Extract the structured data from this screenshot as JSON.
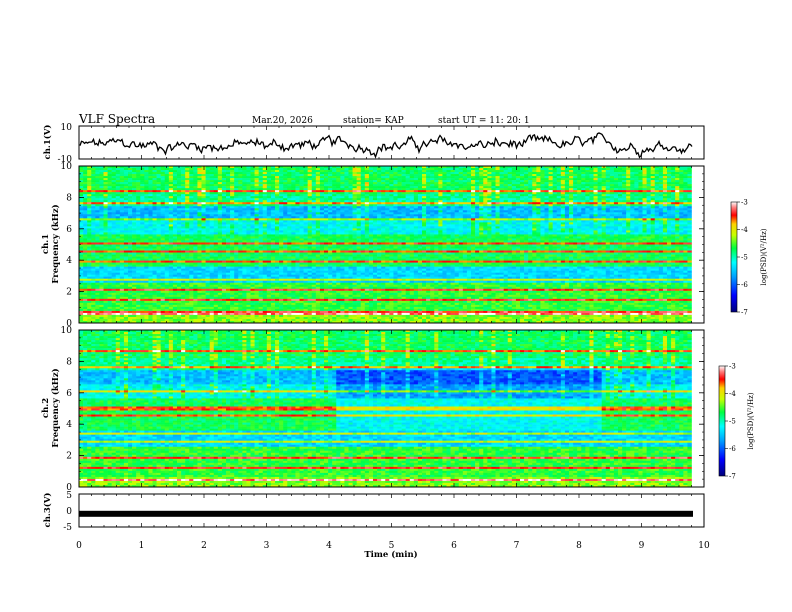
{
  "header": {
    "title": "VLF Spectra",
    "date": "Mar.20, 2026",
    "station": "station= KAP",
    "start_ut": "start  UT =   11: 20: 1"
  },
  "chart_data": [
    {
      "type": "line",
      "name": "ch1-waveform",
      "ylabel": "ch.1(V)",
      "ylim": [
        -10,
        10
      ],
      "yticks": [
        "10",
        "-10"
      ],
      "xlim": [
        0,
        10
      ],
      "description_values": "noisy waveform roughly between -8 and 5 V"
    },
    {
      "type": "heatmap",
      "name": "ch1-spectrogram",
      "ylabel": "ch.1\nFrequency (kHz)",
      "ylabel_line1": "ch.1",
      "ylabel_line2": "Frequency (kHz)",
      "ylim": [
        0,
        10
      ],
      "yticks": [
        "0",
        "2",
        "4",
        "6",
        "8",
        "10"
      ],
      "xlim": [
        0,
        9.8
      ],
      "colorbar": {
        "label": "log(PSD)(V²/Hz)",
        "range": [
          -7,
          -3
        ],
        "ticks": [
          "-3",
          "-4",
          "-5",
          "-6",
          "-7"
        ]
      }
    },
    {
      "type": "heatmap",
      "name": "ch2-spectrogram",
      "ylabel_line1": "ch.2",
      "ylabel_line2": "Frequency (kHz)",
      "ylim": [
        0,
        10
      ],
      "yticks": [
        "0",
        "2",
        "4",
        "6",
        "8",
        "10"
      ],
      "xlim": [
        0,
        9.8
      ],
      "colorbar": {
        "label": "log(PSD)(V²/Hz)",
        "range": [
          -7,
          -3
        ],
        "ticks": [
          "-3",
          "-4",
          "-5",
          "-6",
          "-7"
        ]
      }
    },
    {
      "type": "line",
      "name": "ch3-signal",
      "ylabel": "ch.3(V)",
      "ylim": [
        -5,
        5
      ],
      "yticks": [
        "5",
        "0",
        "-5"
      ],
      "xlim": [
        0,
        10
      ],
      "constant_value": -1,
      "xlabel": "Time (min)",
      "xticks": [
        "0",
        "1",
        "2",
        "3",
        "4",
        "5",
        "6",
        "7",
        "8",
        "9",
        "10"
      ]
    }
  ],
  "colors": {
    "low": "#0000c8",
    "mid": "#00e000",
    "high": "#ff0000",
    "peak": "#ffffff"
  }
}
